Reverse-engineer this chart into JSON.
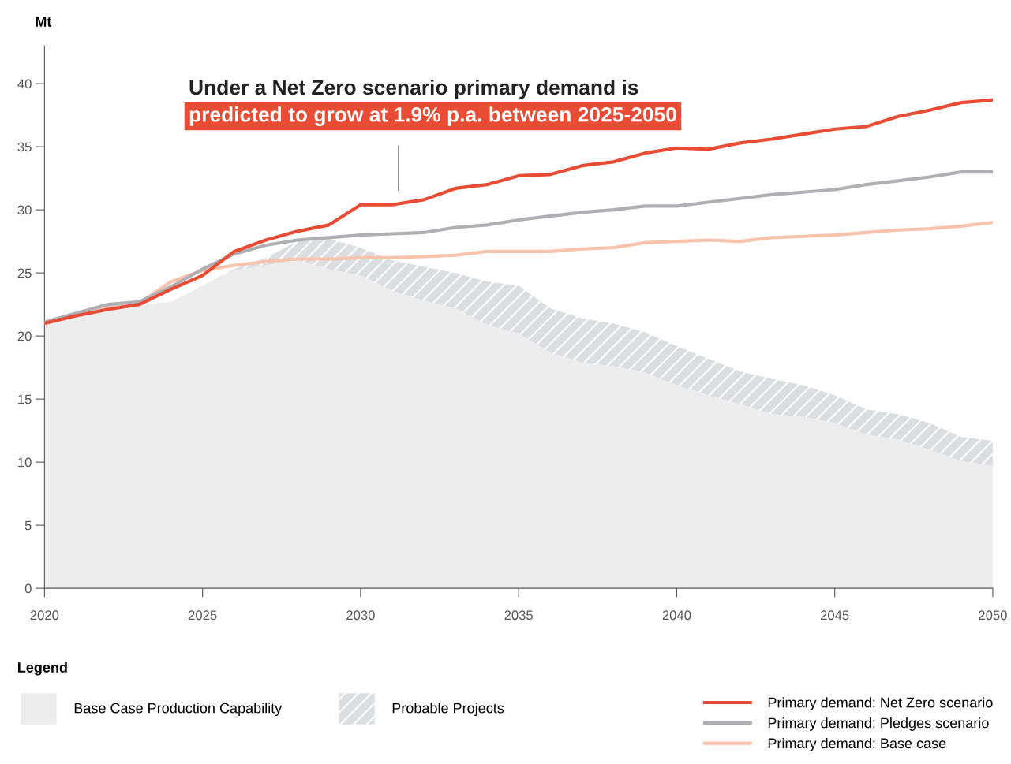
{
  "chart_data": {
    "type": "area",
    "stacked": true,
    "ylabel": "Mt",
    "legend_title": "Legend",
    "legend": "bottom",
    "annotations": [
      "Under a Net Zero scenario primary demand is",
      "predicted to grow at 1.9% p.a. between 2025-2050"
    ],
    "x": [
      2020,
      2021,
      2022,
      2023,
      2024,
      2025,
      2026,
      2027,
      2028,
      2029,
      2030,
      2031,
      2032,
      2033,
      2034,
      2035,
      2036,
      2037,
      2038,
      2039,
      2040,
      2041,
      2042,
      2043,
      2044,
      2045,
      2046,
      2047,
      2048,
      2049,
      2050
    ],
    "xlim": [
      2020,
      2050
    ],
    "xticks": [
      2020,
      2025,
      2030,
      2035,
      2040,
      2045,
      2050
    ],
    "ylim": [
      0,
      43
    ],
    "yticks": [
      0,
      5,
      10,
      15,
      20,
      25,
      30,
      35,
      40
    ],
    "grid": false,
    "series": [
      {
        "name": "Base Case Production Capability",
        "color": "#ededed",
        "values": [
          21.0,
          21.6,
          22.1,
          22.5,
          22.7,
          24.0,
          25.2,
          25.6,
          26.0,
          25.3,
          24.8,
          23.6,
          22.8,
          22.2,
          20.9,
          20.2,
          18.7,
          17.9,
          17.6,
          17.1,
          16.1,
          15.3,
          14.6,
          13.8,
          13.6,
          13.1,
          12.2,
          11.8,
          11.0,
          10.1,
          9.7
        ]
      },
      {
        "name": "Probable Projects",
        "color": "#dcdde0",
        "values": [
          0,
          0,
          0,
          0,
          0,
          0,
          0.1,
          0.6,
          1.5,
          2.4,
          2.2,
          2.4,
          2.7,
          2.8,
          3.4,
          3.8,
          3.5,
          3.5,
          3.4,
          3.2,
          3.1,
          2.9,
          2.6,
          2.8,
          2.5,
          2.2,
          2.0,
          2.0,
          2.1,
          1.9,
          2.0
        ]
      },
      {
        "name": "Primary demand: Net Zero scenario",
        "type": "line",
        "color": "#e84c35",
        "values": [
          21.0,
          21.6,
          22.1,
          22.5,
          23.7,
          24.8,
          26.7,
          27.6,
          28.3,
          28.8,
          30.4,
          30.4,
          30.8,
          31.7,
          32.0,
          32.7,
          32.8,
          33.5,
          33.8,
          34.5,
          34.9,
          34.8,
          35.3,
          35.6,
          36.0,
          36.4,
          36.6,
          37.4,
          37.9,
          38.5,
          38.7
        ]
      },
      {
        "name": "Primary demand: Pledges scenario",
        "type": "line",
        "color": "#b0b0b4",
        "values": [
          21.1,
          21.8,
          22.5,
          22.7,
          23.9,
          25.3,
          26.5,
          27.2,
          27.6,
          27.8,
          28.0,
          28.1,
          28.2,
          28.6,
          28.8,
          29.2,
          29.5,
          29.8,
          30.0,
          30.3,
          30.3,
          30.6,
          30.9,
          31.2,
          31.4,
          31.6,
          32.0,
          32.3,
          32.6,
          33.0,
          33.0
        ]
      },
      {
        "name": "Primary demand: Base case",
        "type": "line",
        "color": "#f8c3ad",
        "values": [
          21.0,
          21.7,
          22.3,
          22.6,
          24.3,
          25.2,
          25.6,
          25.9,
          26.1,
          26.1,
          26.2,
          26.2,
          26.3,
          26.4,
          26.7,
          26.7,
          26.7,
          26.9,
          27.0,
          27.4,
          27.5,
          27.6,
          27.5,
          27.8,
          27.9,
          28.0,
          28.2,
          28.4,
          28.5,
          28.7,
          29.0
        ]
      }
    ]
  }
}
